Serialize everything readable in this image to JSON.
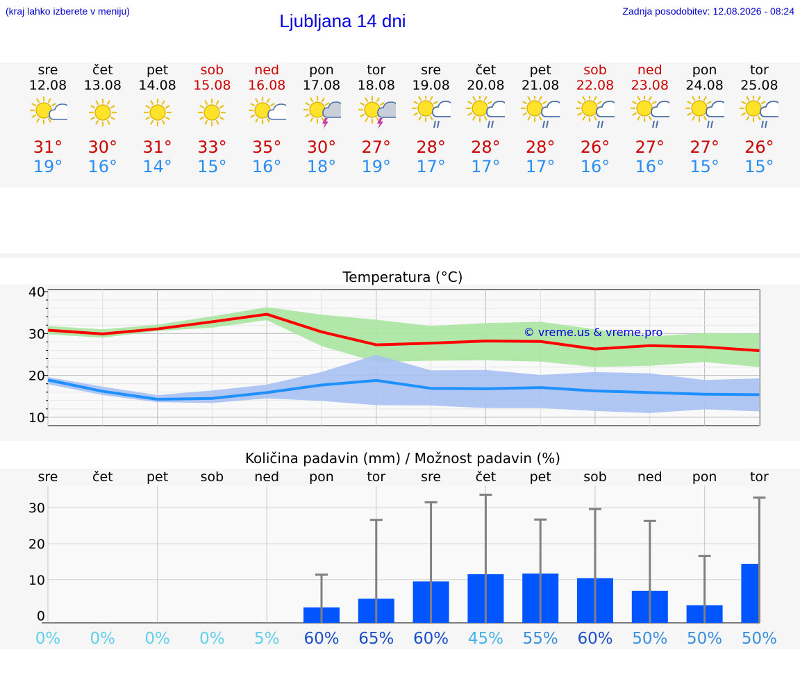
{
  "header": {
    "hint": "(kraj lahko izberete v meniju)",
    "title": "Ljubljana 14 dni",
    "updated": "Zadnja posodobitev: 12.08.2026 - 08:24"
  },
  "colors": {
    "weekday": "#000000",
    "weekend": "#cc0000",
    "tmax": "#cc0000",
    "tmin": "#2a8df0",
    "max_line": "#ff0000",
    "max_band": "#a8e6a1",
    "min_line": "#1e90ff",
    "min_band": "#a9c1f2",
    "precip_bar": "#0055ff",
    "error_bar": "#808080"
  },
  "days": [
    {
      "name": "sre",
      "date": "12.08",
      "weekend": false,
      "icon": "sun-cloud-icon",
      "tmax": "31°",
      "tmin": "19°",
      "prob": "0%"
    },
    {
      "name": "čet",
      "date": "13.08",
      "weekend": false,
      "icon": "sun-icon",
      "tmax": "30°",
      "tmin": "16°",
      "prob": "0%"
    },
    {
      "name": "pet",
      "date": "14.08",
      "weekend": false,
      "icon": "sun-icon",
      "tmax": "31°",
      "tmin": "14°",
      "prob": "0%"
    },
    {
      "name": "sob",
      "date": "15.08",
      "weekend": true,
      "icon": "sun-icon",
      "tmax": "33°",
      "tmin": "15°",
      "prob": "0%"
    },
    {
      "name": "ned",
      "date": "16.08",
      "weekend": true,
      "icon": "sun-cloud-icon",
      "tmax": "35°",
      "tmin": "16°",
      "prob": "5%"
    },
    {
      "name": "pon",
      "date": "17.08",
      "weekend": false,
      "icon": "sun-thunder-icon",
      "tmax": "30°",
      "tmin": "18°",
      "prob": "60%"
    },
    {
      "name": "tor",
      "date": "18.08",
      "weekend": false,
      "icon": "sun-thunder-icon",
      "tmax": "27°",
      "tmin": "19°",
      "prob": "65%"
    },
    {
      "name": "sre",
      "date": "19.08",
      "weekend": false,
      "icon": "sun-rain-icon",
      "tmax": "28°",
      "tmin": "17°",
      "prob": "60%"
    },
    {
      "name": "čet",
      "date": "20.08",
      "weekend": false,
      "icon": "sun-rain-icon",
      "tmax": "28°",
      "tmin": "17°",
      "prob": "45%"
    },
    {
      "name": "pet",
      "date": "21.08",
      "weekend": false,
      "icon": "sun-rain-icon",
      "tmax": "28°",
      "tmin": "17°",
      "prob": "55%"
    },
    {
      "name": "sob",
      "date": "22.08",
      "weekend": true,
      "icon": "sun-rain-icon",
      "tmax": "26°",
      "tmin": "16°",
      "prob": "60%"
    },
    {
      "name": "ned",
      "date": "23.08",
      "weekend": true,
      "icon": "sun-rain-icon",
      "tmax": "27°",
      "tmin": "16°",
      "prob": "50%"
    },
    {
      "name": "pon",
      "date": "24.08",
      "weekend": false,
      "icon": "sun-rain-icon",
      "tmax": "27°",
      "tmin": "15°",
      "prob": "50%"
    },
    {
      "name": "tor",
      "date": "25.08",
      "weekend": false,
      "icon": "sun-rain-icon",
      "tmax": "26°",
      "tmin": "15°",
      "prob": "50%"
    }
  ],
  "chart_data": [
    {
      "type": "line",
      "title": "Temperatura (°C)",
      "watermark": "© vreme.us & vreme.pro",
      "x": [
        1,
        2,
        3,
        4,
        5,
        6,
        7,
        8,
        9,
        10,
        11,
        12,
        13,
        14
      ],
      "ylim": [
        8,
        40.5
      ],
      "yticks": [
        10,
        20,
        30,
        40
      ],
      "grid": true,
      "series": [
        {
          "key": "max",
          "values": [
            30.8,
            29.9,
            31.1,
            32.8,
            34.6,
            30.4,
            27.3,
            27.7,
            28.2,
            28.1,
            26.3,
            27.1,
            26.8,
            25.9
          ],
          "low": [
            29.8,
            29.0,
            30.6,
            31.4,
            33.2,
            27.0,
            23.2,
            23.5,
            23.6,
            23.3,
            22.0,
            22.3,
            23.2,
            22.0
          ],
          "high": [
            31.8,
            31.0,
            32.1,
            34.1,
            36.3,
            34.5,
            33.3,
            31.8,
            32.5,
            32.8,
            31.0,
            29.3,
            30.1,
            30.0
          ]
        },
        {
          "key": "min",
          "values": [
            18.9,
            16.2,
            14.3,
            14.5,
            15.9,
            17.7,
            18.8,
            16.9,
            16.8,
            17.1,
            16.3,
            15.9,
            15.5,
            15.4
          ],
          "low": [
            17.9,
            15.3,
            13.6,
            13.4,
            14.5,
            13.9,
            12.9,
            12.8,
            12.2,
            12.2,
            11.5,
            11.0,
            11.9,
            11.4
          ],
          "high": [
            19.6,
            17.3,
            15.3,
            16.4,
            17.8,
            20.8,
            24.9,
            21.2,
            21.3,
            20.1,
            20.8,
            20.5,
            18.9,
            19.3
          ]
        }
      ]
    },
    {
      "type": "bar",
      "title": "Količina padavin (mm) / Možnost padavin (%)",
      "categories": [
        "sre",
        "čet",
        "pet",
        "sob",
        "ned",
        "pon",
        "tor",
        "sre",
        "čet",
        "pet",
        "sob",
        "ned",
        "pon",
        "tor"
      ],
      "values": [
        0,
        0,
        0,
        0,
        0,
        2.3,
        4.7,
        9.5,
        11.5,
        11.7,
        10.4,
        6.9,
        2.9,
        14.4
      ],
      "error_high": [
        0,
        0,
        0,
        0,
        0,
        11.4,
        26.6,
        31.5,
        33.6,
        26.7,
        29.6,
        26.3,
        16.6,
        32.8
      ],
      "probability": [
        "0%",
        "0%",
        "0%",
        "0%",
        "5%",
        "60%",
        "65%",
        "60%",
        "45%",
        "55%",
        "60%",
        "50%",
        "50%",
        "50%"
      ],
      "ylim": [
        -2,
        36
      ],
      "yticks": [
        0,
        10,
        20,
        30
      ],
      "grid": true
    }
  ]
}
